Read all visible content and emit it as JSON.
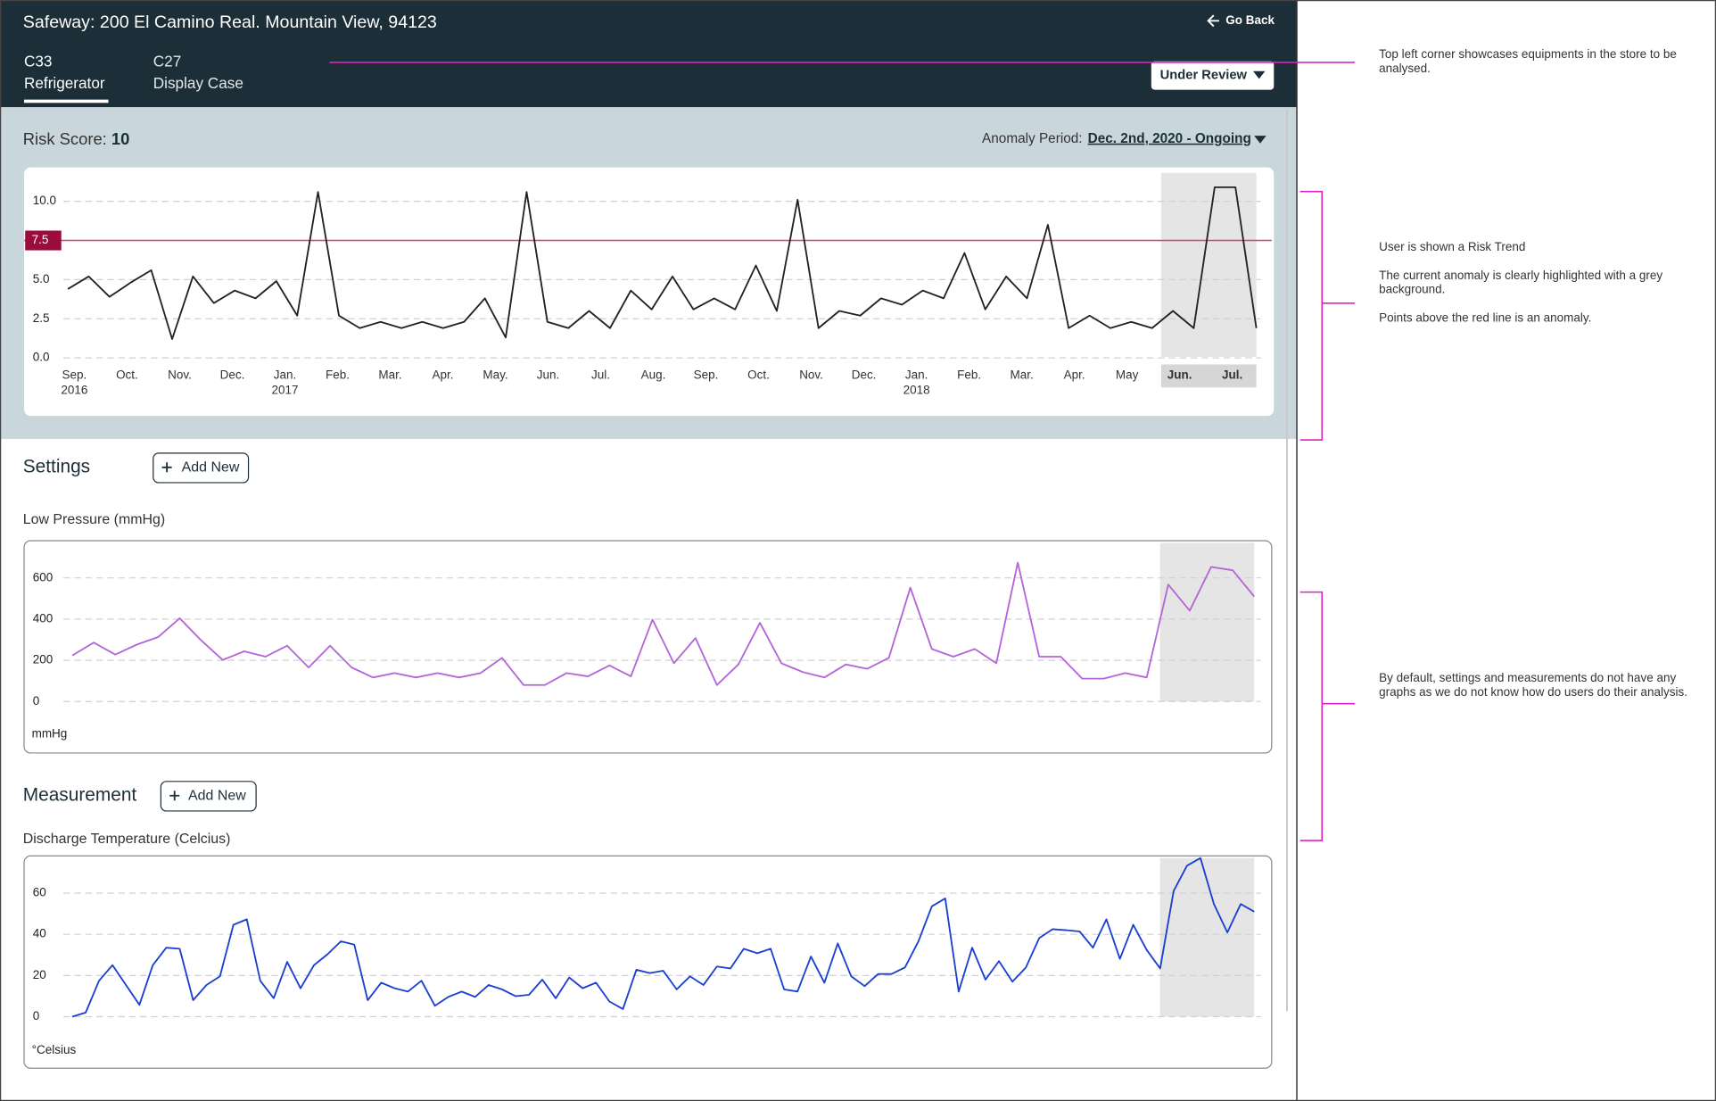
{
  "header": {
    "title": "Safeway: 200 El Camino Real. Mountain View, 94123",
    "go_back": "Go Back",
    "tabs": [
      {
        "code": "C33",
        "name": "Refrigerator"
      },
      {
        "code": "C27",
        "name": "Display Case"
      }
    ],
    "status": "Under Review"
  },
  "risk": {
    "label": "Risk Score:",
    "score": 10,
    "anomaly_label": "Anomaly Period:",
    "anomaly_period": "Dec. 2nd, 2020 - Ongoing"
  },
  "settings": {
    "title": "Settings",
    "add": "Add New"
  },
  "measurement": {
    "title": "Measurement",
    "add": "Add New"
  },
  "annotations": [
    "Top left corner showcases equipments in the store to be analysed.",
    "User is shown a Risk Trend",
    "The current anomaly is clearly highlighted with a grey background.",
    "Points above the red line is an anomaly.",
    "By default,  settings and measurements do not have any graphs as we do not know how do users do their analysis."
  ],
  "chart_data": [
    {
      "type": "line",
      "xtick_labels": [
        "Sep.",
        "Oct.",
        "Nov.",
        "Dec.",
        "Jan.",
        "Feb.",
        "Mar.",
        "Apr.",
        "May.",
        "Jun.",
        "Jul.",
        "Aug.",
        "Sep.",
        "Oct.",
        "Nov.",
        "Dec.",
        "Jan.",
        "Feb.",
        "Mar.",
        "Apr.",
        "May",
        "Jun.",
        "Jul."
      ],
      "xtick_years": [
        "2016",
        null,
        null,
        null,
        "2017",
        null,
        null,
        null,
        null,
        null,
        null,
        null,
        null,
        null,
        null,
        null,
        "2018",
        null,
        null,
        null,
        null,
        null,
        null
      ],
      "values": [
        4.4,
        5.2,
        3.9,
        4.8,
        5.6,
        1.2,
        5.2,
        3.5,
        4.3,
        3.8,
        4.9,
        2.7,
        10.6,
        2.7,
        1.9,
        2.3,
        1.9,
        2.3,
        1.9,
        2.3,
        3.8,
        1.3,
        10.6,
        2.3,
        1.9,
        3.0,
        1.9,
        4.3,
        3.1,
        5.2,
        3.1,
        3.8,
        3.1,
        5.9,
        3.0,
        10.1,
        1.9,
        3.0,
        2.7,
        3.8,
        3.4,
        4.3,
        3.8,
        6.7,
        3.1,
        5.2,
        3.8,
        8.5,
        1.9,
        2.7,
        1.9,
        2.3,
        1.9,
        3.0,
        1.9,
        10.9,
        10.9,
        1.9
      ],
      "color": "#222222",
      "ylim": [
        0,
        11.5
      ],
      "yticks": [
        {
          "value": 0,
          "label": "0.0"
        },
        2.5,
        {
          "value": 5,
          "label": "5.0"
        },
        7.5,
        {
          "value": 10,
          "label": "10.0"
        }
      ],
      "threshold": 7.5,
      "threshold_color": "#9b0c3a",
      "grid": true
    },
    {
      "type": "line",
      "title": "Low Pressure (mmHg)",
      "unit_label": "mmHg",
      "values": [
        223,
        286,
        228,
        276,
        313,
        404,
        297,
        202,
        244,
        218,
        271,
        165,
        271,
        165,
        117,
        138,
        117,
        138,
        117,
        138,
        212,
        80,
        80,
        138,
        122,
        175,
        122,
        398,
        186,
        308,
        80,
        180,
        382,
        186,
        143,
        117,
        180,
        159,
        212,
        553,
        255,
        218,
        255,
        186,
        674,
        218,
        218,
        111,
        111,
        138,
        117,
        568,
        441,
        653,
        637,
        510
      ],
      "color": "#b565d8",
      "ylim": [
        0,
        760
      ],
      "yticks": [
        0,
        200,
        400,
        600
      ],
      "grid": true
    },
    {
      "type": "line",
      "title": "Discharge Temperature (Celcius)",
      "unit_label": "°Celsius",
      "values": [
        0,
        2,
        17.5,
        25,
        15.4,
        5.8,
        25,
        33.5,
        33,
        8,
        15.4,
        19.6,
        44.6,
        47.3,
        17.5,
        9,
        26.6,
        13.8,
        25,
        30.3,
        36.6,
        35,
        8,
        16.5,
        13.8,
        12.2,
        17.5,
        5.3,
        9.6,
        12.2,
        9.6,
        15.4,
        13.3,
        10,
        10.6,
        18,
        9,
        19,
        13.8,
        16.5,
        7.4,
        3.7,
        22.8,
        21.2,
        22.3,
        13.3,
        19.6,
        15.4,
        24.4,
        23.4,
        33,
        30.8,
        33,
        13.3,
        12.2,
        29.2,
        16.5,
        35.6,
        19.6,
        14.9,
        20.7,
        20.7,
        23.9,
        36.6,
        53.6,
        57.4,
        12.2,
        33.5,
        18,
        27,
        17,
        23.9,
        38.2,
        42.5,
        42,
        41.4,
        33.5,
        47.3,
        28.1,
        44.6,
        32.4,
        23.4,
        61,
        73.3,
        77,
        54.7,
        40.9,
        54.7,
        51
      ],
      "color": "#1a3fd1",
      "ylim": [
        0,
        80
      ],
      "yticks": [
        0,
        20,
        40,
        60
      ],
      "grid": true
    }
  ]
}
